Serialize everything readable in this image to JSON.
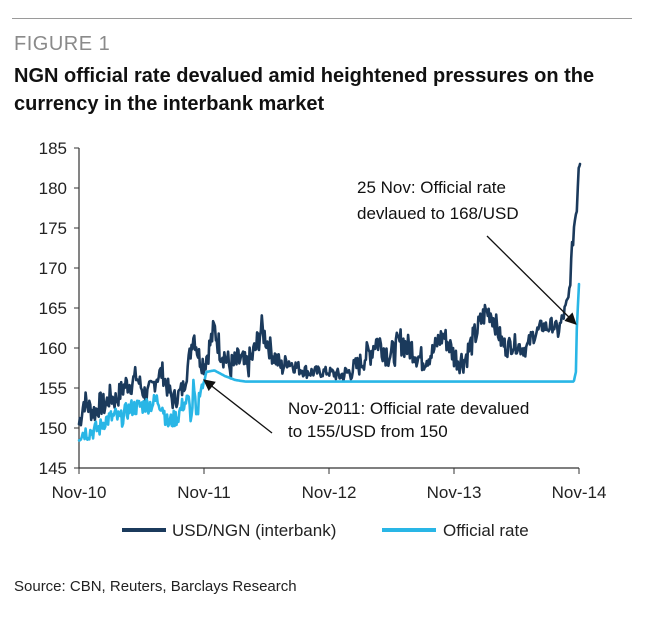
{
  "figure_label": "FIGURE 1",
  "title": "NGN official rate devalued amid heightened pressures on the currency in the interbank market",
  "source": "Source: CBN, Reuters, Barclays Research",
  "colors": {
    "interbank": "#1b3a5c",
    "official": "#29b6e6",
    "axis": "#333333",
    "arrow": "#111111"
  },
  "chart_data": {
    "type": "line",
    "title": "NGN official rate devalued amid heightened pressures on the currency in the interbank market",
    "xlabel": "",
    "ylabel": "",
    "ylim": [
      145,
      185
    ],
    "yticks": [
      145,
      150,
      155,
      160,
      165,
      170,
      175,
      180,
      185
    ],
    "xlim": [
      0,
      48
    ],
    "x_ticks": [
      {
        "x": 0,
        "label": "Nov-10"
      },
      {
        "x": 12,
        "label": "Nov-11"
      },
      {
        "x": 24,
        "label": "Nov-12"
      },
      {
        "x": 36,
        "label": "Nov-13"
      },
      {
        "x": 48,
        "label": "Nov-14"
      }
    ],
    "legend": {
      "position": "bottom"
    },
    "series": [
      {
        "name": "USD/NGN (interbank)",
        "color": "#1b3a5c",
        "points": [
          [
            0,
            150.5
          ],
          [
            0.5,
            153.5
          ],
          [
            1,
            152.5
          ],
          [
            1.5,
            152
          ],
          [
            2,
            153
          ],
          [
            2.5,
            152.8
          ],
          [
            3,
            154
          ],
          [
            3.5,
            153.5
          ],
          [
            4,
            154.5
          ],
          [
            4.5,
            155.5
          ],
          [
            5,
            155.5
          ],
          [
            5.5,
            156.5
          ],
          [
            6,
            155
          ],
          [
            6.5,
            154
          ],
          [
            7,
            155
          ],
          [
            7.5,
            156.5
          ],
          [
            8,
            157
          ],
          [
            8.5,
            155
          ],
          [
            9,
            153.5
          ],
          [
            9.5,
            154
          ],
          [
            10,
            155
          ],
          [
            10.5,
            158
          ],
          [
            11,
            162
          ],
          [
            11.5,
            159
          ],
          [
            12,
            158
          ],
          [
            12.5,
            160
          ],
          [
            13,
            162.5
          ],
          [
            13.5,
            160
          ],
          [
            14,
            159
          ],
          [
            14.5,
            157.5
          ],
          [
            15,
            158
          ],
          [
            15.5,
            158.5
          ],
          [
            16,
            157.5
          ],
          [
            16.5,
            158.5
          ],
          [
            17,
            160
          ],
          [
            17.5,
            162.5
          ],
          [
            18,
            161
          ],
          [
            18.5,
            159.5
          ],
          [
            19,
            158.5
          ],
          [
            19.5,
            157.5
          ],
          [
            20,
            158.5
          ],
          [
            20.5,
            158
          ],
          [
            21,
            157.5
          ],
          [
            21.5,
            157.3
          ],
          [
            22,
            157
          ],
          [
            23,
            157
          ],
          [
            24,
            157
          ],
          [
            24.5,
            156.8
          ],
          [
            25,
            156.5
          ],
          [
            26,
            157
          ],
          [
            26.5,
            157.5
          ],
          [
            27,
            158
          ],
          [
            27.5,
            159
          ],
          [
            28,
            159.5
          ],
          [
            28.5,
            161
          ],
          [
            29,
            160.5
          ],
          [
            29.5,
            159.5
          ],
          [
            30,
            159
          ],
          [
            30.5,
            160
          ],
          [
            31,
            161
          ],
          [
            31.5,
            160
          ],
          [
            32,
            160
          ],
          [
            32.5,
            159
          ],
          [
            33,
            158.5
          ],
          [
            33.5,
            159
          ],
          [
            34,
            159.5
          ],
          [
            34.5,
            161
          ],
          [
            35,
            161.5
          ],
          [
            35.5,
            160.5
          ],
          [
            36,
            159
          ],
          [
            36.5,
            158.5
          ],
          [
            37,
            158.5
          ],
          [
            37.5,
            160
          ],
          [
            38,
            161.5
          ],
          [
            38.5,
            163
          ],
          [
            39,
            164.5
          ],
          [
            39.5,
            164.5
          ],
          [
            40,
            163
          ],
          [
            40.5,
            161
          ],
          [
            41,
            160
          ],
          [
            41.5,
            160.5
          ],
          [
            42,
            160.5
          ],
          [
            42.5,
            160
          ],
          [
            43,
            160
          ],
          [
            43.5,
            161.5
          ],
          [
            44,
            162
          ],
          [
            44.5,
            162.8
          ],
          [
            45,
            162.5
          ],
          [
            45.5,
            163
          ],
          [
            46,
            162
          ],
          [
            46.5,
            164
          ],
          [
            47,
            166
          ],
          [
            47.5,
            175
          ],
          [
            47.8,
            178
          ],
          [
            48,
            184
          ],
          [
            48.1,
            183
          ]
        ],
        "noise": [
          [
            0,
            2
          ],
          [
            10,
            1.6
          ],
          [
            13,
            2.2
          ],
          [
            17,
            2.4
          ],
          [
            20,
            1.3
          ],
          [
            24,
            0.8
          ],
          [
            28,
            2.2
          ],
          [
            31,
            2.4
          ],
          [
            34,
            1.8
          ],
          [
            38,
            2.2
          ],
          [
            41,
            1.6
          ],
          [
            45,
            1.2
          ],
          [
            48,
            1.5
          ]
        ]
      },
      {
        "name": "Official rate",
        "color": "#29b6e6",
        "points": [
          [
            0,
            149.2
          ],
          [
            0.5,
            149.5
          ],
          [
            1,
            149.5
          ],
          [
            1.5,
            149.7
          ],
          [
            2,
            150
          ],
          [
            2.5,
            151
          ],
          [
            3,
            151.2
          ],
          [
            3.5,
            151.5
          ],
          [
            4,
            151
          ],
          [
            4.5,
            152
          ],
          [
            5,
            152.5
          ],
          [
            5.5,
            152.6
          ],
          [
            6,
            152.8
          ],
          [
            7,
            153
          ],
          [
            7.5,
            153.5
          ],
          [
            8,
            152.8
          ],
          [
            8.5,
            150.5
          ],
          [
            9,
            151
          ],
          [
            9.5,
            151.5
          ],
          [
            10,
            153
          ],
          [
            10.5,
            153.5
          ],
          [
            10.8,
            151
          ],
          [
            11,
            155.5
          ],
          [
            11.3,
            150.5
          ],
          [
            11.6,
            155
          ],
          [
            12,
            155.5
          ],
          [
            12.2,
            157
          ],
          [
            13,
            157.2
          ],
          [
            14,
            156.5
          ],
          [
            15,
            156
          ],
          [
            16,
            155.8
          ],
          [
            18,
            155.8
          ],
          [
            20,
            155.8
          ],
          [
            24,
            155.8
          ],
          [
            28,
            155.8
          ],
          [
            32,
            155.8
          ],
          [
            36,
            155.8
          ],
          [
            40,
            155.8
          ],
          [
            44,
            155.8
          ],
          [
            47.5,
            155.8
          ],
          [
            47.7,
            157
          ],
          [
            47.8,
            163
          ],
          [
            48,
            168
          ]
        ],
        "noise": [
          [
            0,
            1.4
          ],
          [
            11.9,
            1.4
          ],
          [
            12,
            0
          ],
          [
            48,
            0
          ]
        ]
      }
    ],
    "annotations": [
      {
        "id": "nov14",
        "lines": [
          "25 Nov: Official rate",
          "devlaued to 168/USD"
        ],
        "arrow_to": [
          47.7,
          163
        ]
      },
      {
        "id": "nov11",
        "lines": [
          "Nov-2011: Official rate  devalued",
          "to 155/USD from 150"
        ],
        "arrow_to": [
          12,
          156
        ]
      }
    ]
  }
}
